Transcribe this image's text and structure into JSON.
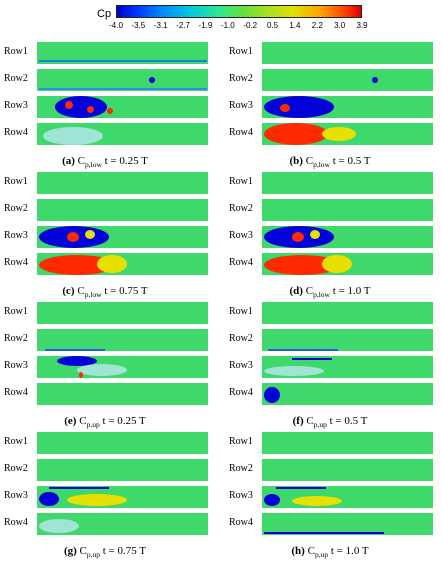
{
  "colorbar": {
    "title": "Cp",
    "ticks": [
      "-4.0",
      "-3.5",
      "-3.1",
      "-2.7",
      "-1.9",
      "-1.0",
      "-0.2",
      "0.5",
      "1.4",
      "2.2",
      "3.0",
      "3.9"
    ]
  },
  "row_labels": [
    "Row1",
    "Row2",
    "Row3",
    "Row4"
  ],
  "panels": [
    {
      "tag": "(a)",
      "sym": "C",
      "sub": "p,low",
      "time": "t = 0.25 T"
    },
    {
      "tag": "(b)",
      "sym": "C",
      "sub": "p,low",
      "time": "t = 0.5 T"
    },
    {
      "tag": "(c)",
      "sym": "C",
      "sub": "p,low",
      "time": "t = 0.75 T"
    },
    {
      "tag": "(d)",
      "sym": "C",
      "sub": "p,low",
      "time": "t = 1.0 T"
    },
    {
      "tag": "(e)",
      "sym": "C",
      "sub": "p,up",
      "time": "t = 0.25 T"
    },
    {
      "tag": "(f)",
      "sym": "C",
      "sub": "p,up",
      "time": "t = 0.5 T"
    },
    {
      "tag": "(g)",
      "sym": "C",
      "sub": "p,up",
      "time": "t = 0.75 T"
    },
    {
      "tag": "(h)",
      "sym": "C",
      "sub": "p,up",
      "time": "t = 1.0 T"
    }
  ],
  "colors": {
    "low": "#0000d8",
    "mid": "#3fd86a",
    "light": "#9fe4d4",
    "high": "#ff2a00",
    "yellow": "#e8e000"
  }
}
